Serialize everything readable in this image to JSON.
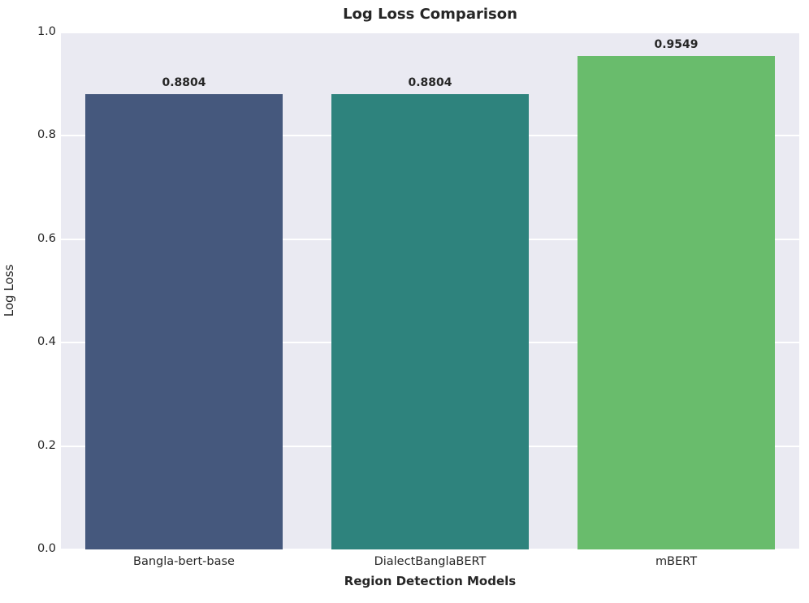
{
  "title": "Log Loss Comparison",
  "chart_data": {
    "type": "bar",
    "title": "Log Loss Comparison",
    "xlabel": "Region Detection Models",
    "ylabel": "Log Loss",
    "categories": [
      "Bangla-bert-base",
      "DialectBanglaBERT",
      "mBERT"
    ],
    "values": [
      0.8804,
      0.8804,
      0.9549
    ],
    "value_labels": [
      "0.8804",
      "0.8804",
      "0.9549"
    ],
    "bar_colors": [
      "#45587D",
      "#2E837D",
      "#69BC6C"
    ],
    "ylim": [
      0.0,
      1.0
    ],
    "yticks": [
      0.0,
      0.2,
      0.4,
      0.6,
      0.8,
      1.0
    ],
    "ytick_labels": [
      "0.0",
      "0.2",
      "0.4",
      "0.6",
      "0.8",
      "1.0"
    ],
    "grid": true,
    "legend": false,
    "plot_background": "#EAEAF2",
    "grid_color": "#FFFFFF",
    "bar_width_fraction": 0.8
  }
}
